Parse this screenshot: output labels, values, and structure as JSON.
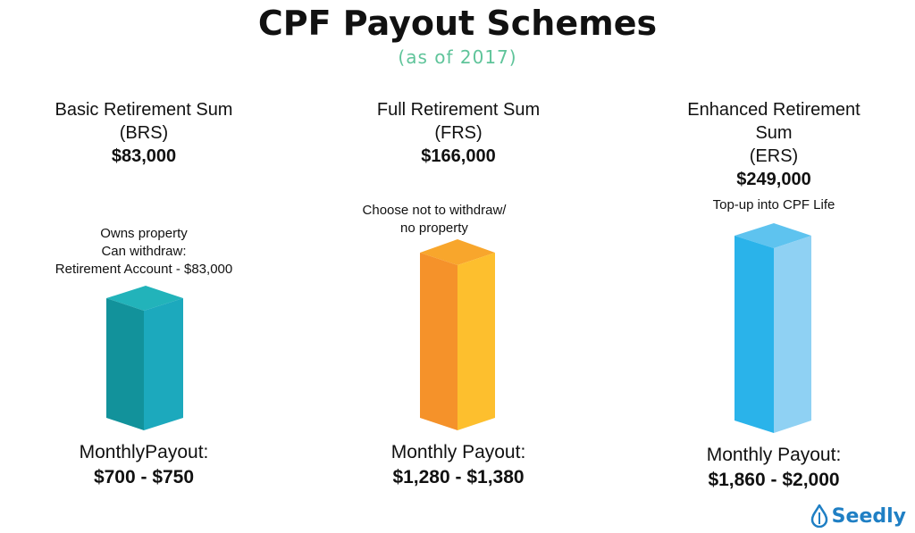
{
  "title": "CPF Payout Schemes",
  "subtitle": "(as of 2017)",
  "brand": "Seedly",
  "colors": {
    "subtitle": "#5fc49a",
    "brs_front": "#12929b",
    "brs_side": "#1ca9bd",
    "brs_top": "#22b3ba",
    "frs_front": "#f5922a",
    "frs_side": "#fdbf2e",
    "frs_top": "#f8a62c",
    "ers_front": "#2ab3ea",
    "ers_side": "#8fd1f3",
    "ers_top": "#5ec3ef",
    "brand": "#1f7fc4"
  },
  "chart_data": {
    "type": "bar",
    "title": "CPF Payout Schemes",
    "subtitle": "(as of 2017)",
    "categories": [
      "BRS",
      "FRS",
      "ERS"
    ],
    "series": [
      {
        "values": [
          83000,
          166000,
          249000
        ]
      }
    ],
    "columns": [
      {
        "name_lines": [
          "Basic Retirement Sum",
          "(BRS)"
        ],
        "amount": "$83,000",
        "note_lines": [
          "Owns property",
          "Can withdraw:",
          "Retirement Account - $83,000"
        ],
        "payout_label": "MonthlyPayout:",
        "payout_range": "$700 - $750"
      },
      {
        "name_lines": [
          "Full Retirement Sum",
          "(FRS)"
        ],
        "amount": "$166,000",
        "note_lines": [
          "Choose not to withdraw/",
          "no property"
        ],
        "payout_label": "Monthly Payout:",
        "payout_range": "$1,280 - $1,380"
      },
      {
        "name_lines": [
          "Enhanced Retirement",
          "Sum",
          "(ERS)"
        ],
        "amount": "$249,000",
        "note_lines": [
          "Top-up into CPF Life"
        ],
        "payout_label": "Monthly Payout:",
        "payout_range": "$1,860 - $2,000"
      }
    ]
  }
}
